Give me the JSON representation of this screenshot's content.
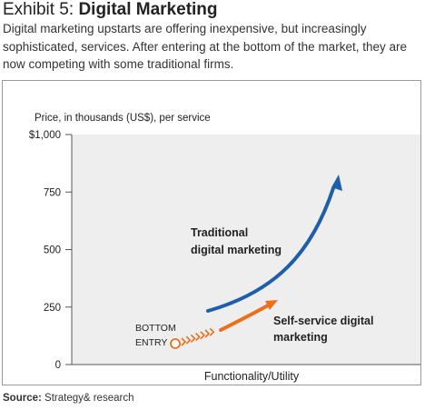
{
  "header": {
    "exhibit": "Exhibit 5:",
    "title": "Digital Marketing",
    "subtitle": "Digital marketing upstarts are offering inexpensive, but increasingly sophisticated, services. After entering at the bottom of the market, they are now competing with some traditional firms."
  },
  "source": {
    "label": "Source:",
    "text": "Strategy& research"
  },
  "colors": {
    "plot_background": "#eeeeee",
    "traditional": "#1f5ea8",
    "self_service": "#ec6f1a"
  },
  "chart_data": {
    "type": "line",
    "ylabel": "Price, in thousands (US$), per service",
    "xlabel": "Functionality/Utility",
    "ylim": [
      0,
      1000
    ],
    "y_ticks": [
      0,
      250,
      500,
      750,
      1000
    ],
    "y_tick_labels": [
      "0",
      "250",
      "500",
      "750",
      "$1,000"
    ],
    "grid": false,
    "annotations": {
      "traditional": [
        "Traditional",
        "digital marketing"
      ],
      "self_service": [
        "Self-service digital",
        "marketing"
      ],
      "bottom_entry": [
        "BOTTOM",
        "ENTRY"
      ]
    }
  }
}
